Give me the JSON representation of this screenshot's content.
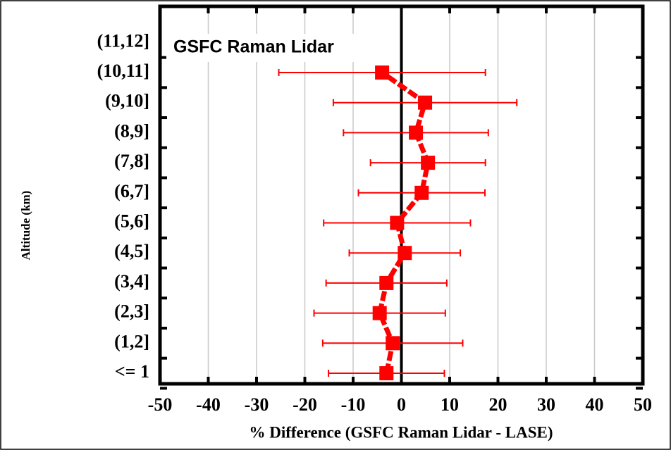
{
  "chart_data": {
    "type": "errorbar",
    "annotation": "GSFC Raman Lidar",
    "xlabel": "% Difference (GSFC Raman Lidar - LASE)",
    "ylabel": "Altitude (km)",
    "categories": [
      "<= 1",
      "(1,2]",
      "(2,3]",
      "(3,4]",
      "(4,5]",
      "(5,6]",
      "(6,7]",
      "(7,8]",
      "(8,9]",
      "(9,10]",
      "(10,11]",
      "(11,12]"
    ],
    "series": [
      {
        "name": "GSFC Raman Lidar",
        "color": "#ff0000",
        "values": [
          -3.1,
          -1.8,
          -4.5,
          -3.1,
          0.7,
          -0.9,
          4.2,
          5.5,
          3.0,
          4.9,
          -4.0,
          null
        ],
        "errors": [
          12,
          14.5,
          13.6,
          12.5,
          11.5,
          15.2,
          13.1,
          11.9,
          15,
          19,
          21.4,
          null
        ]
      }
    ],
    "xlim": [
      -50,
      50
    ],
    "xticks": [
      -50,
      -40,
      -30,
      -20,
      -10,
      0,
      10,
      20,
      30,
      40,
      50
    ],
    "grid": true
  }
}
